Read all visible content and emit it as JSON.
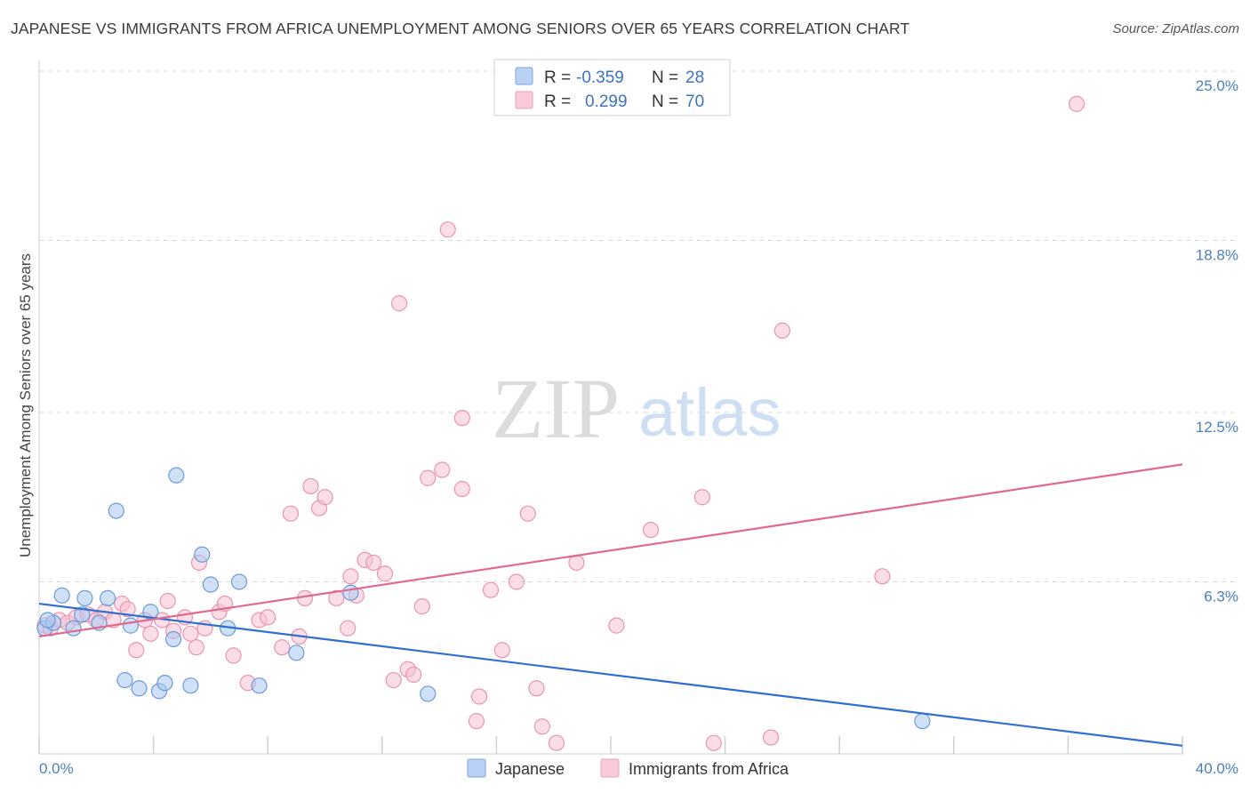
{
  "title": "JAPANESE VS IMMIGRANTS FROM AFRICA UNEMPLOYMENT AMONG SENIORS OVER 65 YEARS CORRELATION CHART",
  "source": "Source: ZipAtlas.com",
  "watermark": {
    "zip": "ZIP",
    "atlas": "atlas"
  },
  "colors": {
    "japanese_fill": "#a9c8f0",
    "japanese_stroke": "#6a9bd8",
    "japanese_line": "#2f6fd0",
    "africa_fill": "#f6c1d2",
    "africa_stroke": "#e995b2",
    "africa_line": "#e06990",
    "tick_text": "#4a7fc4",
    "grid": "#d9d9d9"
  },
  "legend": {
    "rows": [
      {
        "r_label": "R =",
        "r_value": "-0.359",
        "n_label": "N =",
        "n_value": "28"
      },
      {
        "r_label": "R =",
        "r_value": "0.299",
        "n_label": "N =",
        "n_value": "70"
      }
    ]
  },
  "chart_data": {
    "type": "scatter",
    "title": "JAPANESE VS IMMIGRANTS FROM AFRICA UNEMPLOYMENT AMONG SENIORS OVER 65 YEARS CORRELATION CHART",
    "xlabel": "",
    "ylabel": "Unemployment Among Seniors over 65 years",
    "xlim": [
      0,
      40
    ],
    "ylim": [
      0,
      25.0
    ],
    "x_tick_labels": [
      "0.0%",
      "40.0%"
    ],
    "y_ticks": [
      6.3,
      12.5,
      18.8,
      25.0
    ],
    "y_tick_labels": [
      "6.3%",
      "12.5%",
      "18.8%",
      "25.0%"
    ],
    "grid": true,
    "legend_position": "top-center",
    "series": [
      {
        "name": "Japanese",
        "r": -0.359,
        "n": 28,
        "trend": {
          "x": [
            0,
            40
          ],
          "y": [
            5.5,
            0.3
          ]
        },
        "points": [
          [
            0.2,
            4.6
          ],
          [
            0.5,
            4.8
          ],
          [
            0.8,
            5.8
          ],
          [
            1.2,
            4.6
          ],
          [
            1.5,
            5.1
          ],
          [
            1.6,
            5.7
          ],
          [
            2.1,
            4.8
          ],
          [
            2.4,
            5.7
          ],
          [
            2.7,
            8.9
          ],
          [
            3.0,
            2.7
          ],
          [
            3.2,
            4.7
          ],
          [
            3.5,
            2.4
          ],
          [
            3.9,
            5.2
          ],
          [
            4.2,
            2.3
          ],
          [
            4.4,
            2.6
          ],
          [
            4.7,
            4.2
          ],
          [
            4.8,
            10.2
          ],
          [
            5.3,
            2.5
          ],
          [
            5.7,
            7.3
          ],
          [
            6.0,
            6.2
          ],
          [
            6.6,
            4.6
          ],
          [
            7.0,
            6.3
          ],
          [
            7.7,
            2.5
          ],
          [
            9.0,
            3.7
          ],
          [
            10.9,
            5.9
          ],
          [
            13.6,
            2.2
          ],
          [
            30.9,
            1.2
          ],
          [
            0.3,
            4.9
          ]
        ]
      },
      {
        "name": "Immigrants from Africa",
        "r": 0.299,
        "n": 70,
        "trend": {
          "x": [
            0,
            40
          ],
          "y": [
            4.3,
            10.6
          ]
        },
        "points": [
          [
            0.2,
            4.7
          ],
          [
            0.4,
            4.6
          ],
          [
            0.7,
            4.9
          ],
          [
            1.0,
            4.8
          ],
          [
            1.3,
            5.0
          ],
          [
            1.7,
            5.1
          ],
          [
            2.0,
            4.9
          ],
          [
            2.3,
            5.2
          ],
          [
            2.6,
            4.9
          ],
          [
            2.9,
            5.5
          ],
          [
            3.1,
            5.3
          ],
          [
            3.4,
            3.8
          ],
          [
            3.7,
            4.9
          ],
          [
            3.9,
            4.4
          ],
          [
            4.3,
            4.9
          ],
          [
            4.5,
            5.6
          ],
          [
            4.7,
            4.5
          ],
          [
            5.1,
            5.0
          ],
          [
            5.3,
            4.4
          ],
          [
            5.5,
            3.9
          ],
          [
            5.8,
            4.6
          ],
          [
            5.6,
            7.0
          ],
          [
            6.3,
            5.2
          ],
          [
            6.5,
            5.5
          ],
          [
            6.8,
            3.6
          ],
          [
            7.3,
            2.6
          ],
          [
            7.7,
            4.9
          ],
          [
            8.0,
            5.0
          ],
          [
            8.5,
            3.9
          ],
          [
            8.8,
            8.8
          ],
          [
            9.1,
            4.3
          ],
          [
            9.3,
            5.7
          ],
          [
            9.5,
            9.8
          ],
          [
            9.8,
            9.0
          ],
          [
            10.0,
            9.4
          ],
          [
            10.4,
            5.7
          ],
          [
            10.8,
            4.6
          ],
          [
            10.9,
            6.5
          ],
          [
            11.1,
            5.8
          ],
          [
            11.4,
            7.1
          ],
          [
            11.7,
            7.0
          ],
          [
            12.1,
            6.6
          ],
          [
            12.4,
            2.7
          ],
          [
            12.6,
            16.5
          ],
          [
            12.9,
            3.1
          ],
          [
            13.1,
            2.9
          ],
          [
            13.4,
            5.4
          ],
          [
            13.6,
            10.1
          ],
          [
            14.3,
            19.2
          ],
          [
            14.8,
            12.3
          ],
          [
            14.8,
            9.7
          ],
          [
            14.1,
            10.4
          ],
          [
            15.4,
            2.1
          ],
          [
            15.3,
            1.2
          ],
          [
            15.8,
            6.0
          ],
          [
            16.2,
            3.8
          ],
          [
            16.7,
            6.3
          ],
          [
            17.1,
            8.8
          ],
          [
            17.4,
            2.4
          ],
          [
            17.6,
            1.0
          ],
          [
            18.1,
            0.4
          ],
          [
            18.8,
            7.0
          ],
          [
            20.2,
            4.7
          ],
          [
            21.4,
            8.2
          ],
          [
            23.2,
            9.4
          ],
          [
            23.6,
            0.4
          ],
          [
            25.6,
            0.6
          ],
          [
            26.0,
            15.5
          ],
          [
            29.5,
            6.5
          ],
          [
            36.3,
            23.8
          ]
        ]
      }
    ]
  }
}
